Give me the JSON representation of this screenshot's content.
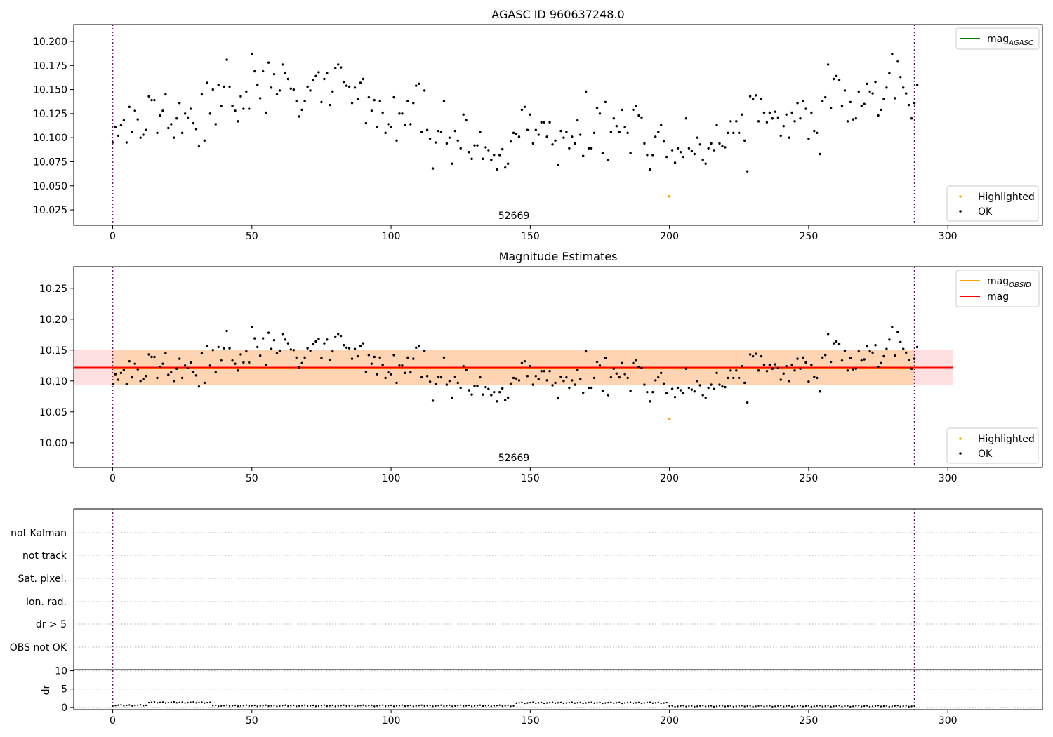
{
  "chart_data": [
    {
      "type": "scatter",
      "title": "AGASC ID 960637248.0",
      "xlim": [
        -14,
        334
      ],
      "ylim": [
        10.009,
        10.2175
      ],
      "x_ticks": [
        "0",
        "50",
        "100",
        "150",
        "200",
        "250",
        "300"
      ],
      "y_ticks": [
        "10.025",
        "10.050",
        "10.075",
        "10.100",
        "10.125",
        "10.150",
        "10.175",
        "10.200"
      ],
      "x_tick_values": [
        0,
        50,
        100,
        150,
        200,
        250,
        300
      ],
      "y_tick_values": [
        10.025,
        10.05,
        10.075,
        10.1,
        10.125,
        10.15,
        10.175,
        10.2
      ],
      "vlines": [
        0,
        288
      ],
      "annotation": {
        "text": "52669",
        "x": 144,
        "y": 10.014
      },
      "legend_upper": {
        "position": "upper right",
        "entries": [
          {
            "label": "mag",
            "subscript": "AGASC",
            "color": "#008000",
            "kind": "line"
          }
        ]
      },
      "legend_lower": {
        "position": "lower right",
        "entries": [
          {
            "label": "Highlighted",
            "color": "#ffa500",
            "kind": "point"
          },
          {
            "label": "OK",
            "color": "#000000",
            "kind": "point"
          }
        ]
      },
      "highlighted": {
        "x": [
          200
        ],
        "y": [
          10.039
        ]
      }
    },
    {
      "type": "scatter",
      "title": "Magnitude Estimates",
      "xlim": [
        -14,
        334
      ],
      "ylim": [
        9.96,
        10.285
      ],
      "x_ticks": [
        "0",
        "50",
        "100",
        "150",
        "200",
        "250",
        "300"
      ],
      "y_ticks": [
        "10.00",
        "10.05",
        "10.10",
        "10.15",
        "10.20",
        "10.25"
      ],
      "x_tick_values": [
        0,
        50,
        100,
        150,
        200,
        250,
        300
      ],
      "y_tick_values": [
        10.0,
        10.05,
        10.1,
        10.15,
        10.2,
        10.25
      ],
      "vlines": [
        0,
        288
      ],
      "mag_line": 10.122,
      "mag_obsid_line": 10.121,
      "band_red": {
        "y": [
          10.094,
          10.15
        ],
        "x": [
          -14,
          302
        ]
      },
      "band_orange": {
        "y": [
          10.094,
          10.15
        ],
        "x": [
          0,
          288
        ]
      },
      "annotation": {
        "text": "52669",
        "x": 144,
        "y": 9.983
      },
      "legend_upper": {
        "position": "upper right",
        "entries": [
          {
            "label": "mag",
            "subscript": "OBSID",
            "color": "#ffa500",
            "kind": "line"
          },
          {
            "label": "mag",
            "subscript": "",
            "color": "#ff0000",
            "kind": "line"
          }
        ]
      },
      "legend_lower": {
        "position": "lower right",
        "entries": [
          {
            "label": "Highlighted",
            "color": "#ffa500",
            "kind": "point"
          },
          {
            "label": "OK",
            "color": "#000000",
            "kind": "point"
          }
        ]
      },
      "highlighted": {
        "x": [
          200
        ],
        "y": [
          10.039
        ]
      }
    },
    {
      "type": "scatter",
      "title": "",
      "xlim": [
        -14,
        334
      ],
      "flag_labels": [
        "not Kalman",
        "not track",
        "Sat. pixel.",
        "Ion. rad.",
        "dr > 5",
        "OBS not OK"
      ],
      "vlines": [
        0,
        288
      ],
      "sub_ylabel": "dr",
      "sub_y_ticks": [
        "0",
        "5",
        "10"
      ],
      "sub_y_tick_values": [
        0,
        5,
        10
      ],
      "sub_ylim": [
        -0.6,
        10.3
      ],
      "x_ticks": [
        "0",
        "50",
        "100",
        "150",
        "200",
        "250",
        "300"
      ],
      "x_tick_values": [
        0,
        50,
        100,
        150,
        200,
        250,
        300
      ],
      "dr_segments": [
        {
          "x": [
            0,
            12
          ],
          "y": 0.55
        },
        {
          "x": [
            13,
            35
          ],
          "y": 1.35
        },
        {
          "x": [
            36,
            144
          ],
          "y": 0.45
        },
        {
          "x": [
            145,
            199
          ],
          "y": 1.25
        },
        {
          "x": [
            200,
            288
          ],
          "y": 0.35
        }
      ]
    }
  ],
  "ok_points": [
    [
      0,
      10.095
    ],
    [
      1,
      10.111
    ],
    [
      2,
      10.102
    ],
    [
      3,
      10.113
    ],
    [
      4,
      10.118
    ],
    [
      5,
      10.095
    ],
    [
      6,
      10.132
    ],
    [
      7,
      10.106
    ],
    [
      8,
      10.128
    ],
    [
      9,
      10.119
    ],
    [
      10,
      10.1
    ],
    [
      11,
      10.103
    ],
    [
      12,
      10.108
    ],
    [
      13,
      10.143
    ],
    [
      14,
      10.139
    ],
    [
      15,
      10.139
    ],
    [
      16,
      10.105
    ],
    [
      17,
      10.123
    ],
    [
      18,
      10.128
    ],
    [
      19,
      10.145
    ],
    [
      20,
      10.11
    ],
    [
      21,
      10.114
    ],
    [
      22,
      10.1
    ],
    [
      23,
      10.12
    ],
    [
      24,
      10.136
    ],
    [
      25,
      10.105
    ],
    [
      26,
      10.125
    ],
    [
      27,
      10.121
    ],
    [
      28,
      10.13
    ],
    [
      29,
      10.115
    ],
    [
      30,
      10.109
    ],
    [
      31,
      10.091
    ],
    [
      32,
      10.145
    ],
    [
      33,
      10.097
    ],
    [
      34,
      10.157
    ],
    [
      35,
      10.125
    ],
    [
      36,
      10.15
    ],
    [
      37,
      10.114
    ],
    [
      38,
      10.155
    ],
    [
      39,
      10.133
    ],
    [
      40,
      10.153
    ],
    [
      41,
      10.181
    ],
    [
      42,
      10.153
    ],
    [
      43,
      10.133
    ],
    [
      44,
      10.128
    ],
    [
      45,
      10.117
    ],
    [
      46,
      10.143
    ],
    [
      47,
      10.13
    ],
    [
      48,
      10.148
    ],
    [
      49,
      10.13
    ],
    [
      50,
      10.187
    ],
    [
      51,
      10.169
    ],
    [
      52,
      10.155
    ],
    [
      53,
      10.141
    ],
    [
      54,
      10.169
    ],
    [
      55,
      10.126
    ],
    [
      56,
      10.178
    ],
    [
      57,
      10.152
    ],
    [
      58,
      10.166
    ],
    [
      59,
      10.145
    ],
    [
      60,
      10.149
    ],
    [
      61,
      10.176
    ],
    [
      62,
      10.167
    ],
    [
      63,
      10.161
    ],
    [
      64,
      10.151
    ],
    [
      65,
      10.15
    ],
    [
      66,
      10.138
    ],
    [
      67,
      10.122
    ],
    [
      68,
      10.129
    ],
    [
      69,
      10.138
    ],
    [
      70,
      10.153
    ],
    [
      71,
      10.149
    ],
    [
      72,
      10.16
    ],
    [
      73,
      10.164
    ],
    [
      74,
      10.168
    ],
    [
      75,
      10.137
    ],
    [
      76,
      10.161
    ],
    [
      77,
      10.167
    ],
    [
      78,
      10.134
    ],
    [
      79,
      10.148
    ],
    [
      80,
      10.172
    ],
    [
      81,
      10.176
    ],
    [
      82,
      10.173
    ],
    [
      83,
      10.158
    ],
    [
      84,
      10.154
    ],
    [
      85,
      10.153
    ],
    [
      86,
      10.136
    ],
    [
      87,
      10.152
    ],
    [
      88,
      10.14
    ],
    [
      89,
      10.157
    ],
    [
      90,
      10.161
    ],
    [
      91,
      10.115
    ],
    [
      92,
      10.142
    ],
    [
      93,
      10.128
    ],
    [
      94,
      10.139
    ],
    [
      95,
      10.111
    ],
    [
      96,
      10.138
    ],
    [
      97,
      10.126
    ],
    [
      98,
      10.105
    ],
    [
      99,
      10.114
    ],
    [
      100,
      10.111
    ],
    [
      101,
      10.142
    ],
    [
      102,
      10.097
    ],
    [
      103,
      10.125
    ],
    [
      104,
      10.125
    ],
    [
      105,
      10.113
    ],
    [
      106,
      10.138
    ],
    [
      107,
      10.114
    ],
    [
      108,
      10.136
    ],
    [
      109,
      10.154
    ],
    [
      110,
      10.156
    ],
    [
      111,
      10.106
    ],
    [
      112,
      10.149
    ],
    [
      113,
      10.108
    ],
    [
      114,
      10.099
    ],
    [
      115,
      10.068
    ],
    [
      116,
      10.095
    ],
    [
      117,
      10.107
    ],
    [
      118,
      10.106
    ],
    [
      119,
      10.138
    ],
    [
      120,
      10.094
    ],
    [
      121,
      10.1
    ],
    [
      122,
      10.073
    ],
    [
      123,
      10.107
    ],
    [
      124,
      10.097
    ],
    [
      125,
      10.089
    ],
    [
      126,
      10.124
    ],
    [
      127,
      10.118
    ],
    [
      128,
      10.085
    ],
    [
      129,
      10.078
    ],
    [
      130,
      10.092
    ],
    [
      131,
      10.092
    ],
    [
      132,
      10.106
    ],
    [
      133,
      10.078
    ],
    [
      134,
      10.09
    ],
    [
      135,
      10.087
    ],
    [
      136,
      10.077
    ],
    [
      137,
      10.082
    ],
    [
      138,
      10.067
    ],
    [
      139,
      10.082
    ],
    [
      140,
      10.088
    ],
    [
      141,
      10.069
    ],
    [
      142,
      10.073
    ],
    [
      143,
      10.096
    ],
    [
      144,
      10.105
    ],
    [
      145,
      10.104
    ],
    [
      146,
      10.101
    ],
    [
      147,
      10.129
    ],
    [
      148,
      10.132
    ],
    [
      149,
      10.108
    ],
    [
      150,
      10.124
    ],
    [
      151,
      10.094
    ],
    [
      152,
      10.108
    ],
    [
      153,
      10.103
    ],
    [
      154,
      10.116
    ],
    [
      155,
      10.116
    ],
    [
      156,
      10.101
    ],
    [
      157,
      10.116
    ],
    [
      158,
      10.093
    ],
    [
      159,
      10.097
    ],
    [
      160,
      10.072
    ],
    [
      161,
      10.107
    ],
    [
      162,
      10.1
    ],
    [
      163,
      10.106
    ],
    [
      164,
      10.089
    ],
    [
      165,
      10.101
    ],
    [
      166,
      10.094
    ],
    [
      167,
      10.118
    ],
    [
      168,
      10.103
    ],
    [
      169,
      10.081
    ],
    [
      170,
      10.148
    ],
    [
      171,
      10.089
    ],
    [
      172,
      10.089
    ],
    [
      173,
      10.105
    ],
    [
      174,
      10.131
    ],
    [
      175,
      10.125
    ],
    [
      176,
      10.084
    ],
    [
      177,
      10.137
    ],
    [
      178,
      10.077
    ],
    [
      179,
      10.106
    ],
    [
      180,
      10.12
    ],
    [
      181,
      10.112
    ],
    [
      182,
      10.106
    ],
    [
      183,
      10.129
    ],
    [
      184,
      10.111
    ],
    [
      185,
      10.105
    ],
    [
      186,
      10.084
    ],
    [
      187,
      10.129
    ],
    [
      188,
      10.133
    ],
    [
      189,
      10.123
    ],
    [
      190,
      10.121
    ],
    [
      191,
      10.094
    ],
    [
      192,
      10.082
    ],
    [
      193,
      10.067
    ],
    [
      194,
      10.082
    ],
    [
      195,
      10.101
    ],
    [
      196,
      10.106
    ],
    [
      197,
      10.113
    ],
    [
      198,
      10.096
    ],
    [
      199,
      10.08
    ],
    [
      201,
      10.087
    ],
    [
      202,
      10.074
    ],
    [
      203,
      10.089
    ],
    [
      204,
      10.085
    ],
    [
      205,
      10.08
    ],
    [
      206,
      10.12
    ],
    [
      207,
      10.089
    ],
    [
      208,
      10.086
    ],
    [
      209,
      10.083
    ],
    [
      210,
      10.1
    ],
    [
      211,
      10.093
    ],
    [
      212,
      10.077
    ],
    [
      213,
      10.073
    ],
    [
      214,
      10.089
    ],
    [
      215,
      10.094
    ],
    [
      216,
      10.087
    ],
    [
      217,
      10.113
    ],
    [
      218,
      10.094
    ],
    [
      219,
      10.091
    ],
    [
      220,
      10.09
    ],
    [
      221,
      10.105
    ],
    [
      222,
      10.117
    ],
    [
      223,
      10.105
    ],
    [
      224,
      10.117
    ],
    [
      225,
      10.105
    ],
    [
      226,
      10.124
    ],
    [
      227,
      10.097
    ],
    [
      228,
      10.065
    ],
    [
      229,
      10.143
    ],
    [
      230,
      10.14
    ],
    [
      231,
      10.144
    ],
    [
      232,
      10.117
    ],
    [
      233,
      10.14
    ],
    [
      234,
      10.126
    ],
    [
      235,
      10.116
    ],
    [
      236,
      10.126
    ],
    [
      237,
      10.12
    ],
    [
      238,
      10.127
    ],
    [
      239,
      10.121
    ],
    [
      240,
      10.102
    ],
    [
      241,
      10.112
    ],
    [
      242,
      10.124
    ],
    [
      243,
      10.1
    ],
    [
      244,
      10.126
    ],
    [
      245,
      10.117
    ],
    [
      246,
      10.136
    ],
    [
      247,
      10.12
    ],
    [
      248,
      10.138
    ],
    [
      249,
      10.13
    ],
    [
      250,
      10.099
    ],
    [
      251,
      10.126
    ],
    [
      252,
      10.107
    ],
    [
      253,
      10.105
    ],
    [
      254,
      10.083
    ],
    [
      255,
      10.138
    ],
    [
      256,
      10.142
    ],
    [
      257,
      10.176
    ],
    [
      258,
      10.131
    ],
    [
      259,
      10.161
    ],
    [
      260,
      10.164
    ],
    [
      261,
      10.16
    ],
    [
      262,
      10.133
    ],
    [
      263,
      10.149
    ],
    [
      264,
      10.117
    ],
    [
      265,
      10.137
    ],
    [
      266,
      10.119
    ],
    [
      267,
      10.12
    ],
    [
      268,
      10.148
    ],
    [
      269,
      10.133
    ],
    [
      270,
      10.135
    ],
    [
      271,
      10.156
    ],
    [
      272,
      10.148
    ],
    [
      273,
      10.146
    ],
    [
      274,
      10.158
    ],
    [
      275,
      10.123
    ],
    [
      276,
      10.129
    ],
    [
      277,
      10.14
    ],
    [
      278,
      10.152
    ],
    [
      279,
      10.167
    ],
    [
      280,
      10.187
    ],
    [
      281,
      10.141
    ],
    [
      282,
      10.179
    ],
    [
      283,
      10.163
    ],
    [
      284,
      10.152
    ],
    [
      285,
      10.146
    ],
    [
      286,
      10.134
    ],
    [
      287,
      10.12
    ],
    [
      288,
      10.136
    ],
    [
      289,
      10.155
    ]
  ]
}
